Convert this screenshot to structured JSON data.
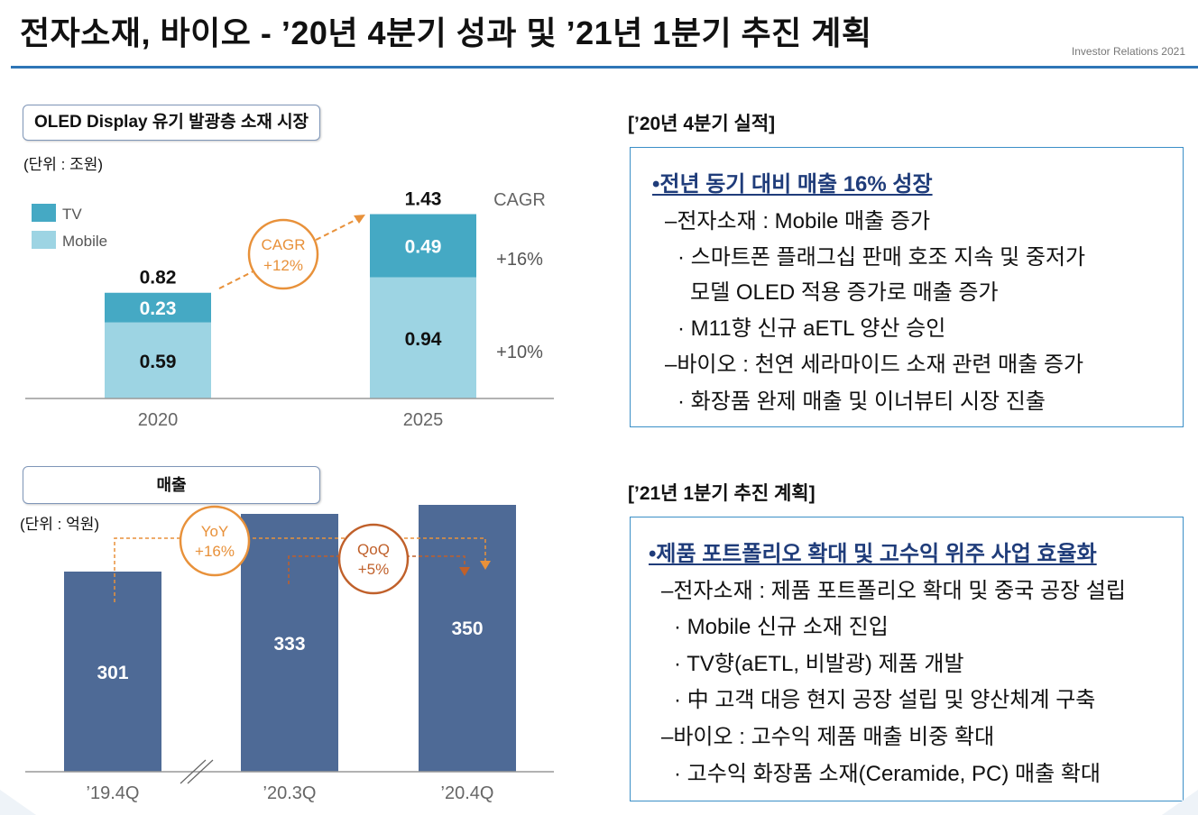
{
  "header": {
    "title": "전자소재, 바이오 - ’20년 4분기 성과 및 ’21년 1분기 추진 계획",
    "ir_label": "Investor Relations 2021"
  },
  "market_section": {
    "label": "OLED Display 유기 발광층 소재 시장",
    "unit": "(단위 : 조원)",
    "cagr_badge": [
      "CAGR",
      "+12%"
    ]
  },
  "sales_section": {
    "label": "매출",
    "unit": "(단위 : 억원)",
    "yoy_badge": [
      "YoY",
      "+16%"
    ],
    "qoq_badge": [
      "QoQ",
      "+5%"
    ]
  },
  "chart_data": [
    {
      "type": "bar",
      "stacked": true,
      "title": "OLED Display 유기 발광층 소재 시장",
      "unit": "(단위 : 조원)",
      "categories": [
        "2020",
        "2025"
      ],
      "series": [
        {
          "name": "Mobile",
          "values": [
            0.59,
            0.94
          ],
          "color": "#9dd4e3"
        },
        {
          "name": "TV",
          "values": [
            0.23,
            0.49
          ],
          "color": "#45a9c4"
        }
      ],
      "totals": [
        0.82,
        1.43
      ],
      "legend": [
        "TV",
        "Mobile"
      ],
      "cagr_header": "CAGR",
      "cagr_series": [
        "+16%",
        "+10%"
      ],
      "ylim": [
        0,
        1.6
      ]
    },
    {
      "type": "bar",
      "title": "매출",
      "unit": "(단위 : 억원)",
      "categories": [
        "’19.4Q",
        "’20.3Q",
        "’20.4Q"
      ],
      "values": [
        301,
        333,
        350
      ],
      "color": "#4e6a96",
      "ylim": [
        0,
        400
      ],
      "annotations": [
        "YoY +16%",
        "QoQ +5%"
      ]
    }
  ],
  "q4_results": {
    "heading": "[’20년 4분기 실적]",
    "lines": [
      "•전년 동기 대비 매출 16% 성장",
      "–전자소재 : Mobile 매출 증가",
      "· 스마트폰 플래그십 판매 호조 지속 및 중저가",
      "모델  OLED 적용 증가로 매출 증가",
      "· M11향 신규 aETL 양산 승인",
      "–바이오 : 천연 세라마이드 소재 관련 매출 증가",
      "· 화장품 완제 매출 및 이너뷰티 시장 진출"
    ]
  },
  "q1_plan": {
    "heading": "[’21년 1분기 추진 계획]",
    "lines": [
      "•제품 포트폴리오 확대 및 고수익 위주 사업 효율화",
      "–전자소재 : 제품 포트폴리오 확대 및 중국 공장 설립",
      "· Mobile 신규 소재 진입",
      "· TV향(aETL, 비발광) 제품 개발",
      "· 中 고객 대응 현지 공장 설립 및 양산체계 구축",
      "–바이오 :  고수익 제품 매출 비중 확대",
      "· 고수익 화장품 소재(Ceramide, PC) 매출 확대"
    ]
  }
}
